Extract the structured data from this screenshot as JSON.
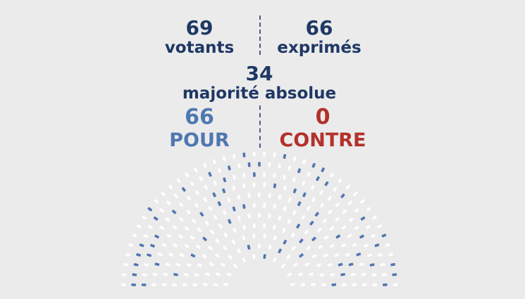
{
  "stats": {
    "votants": {
      "value": "69",
      "label": "votants"
    },
    "exprimes": {
      "value": "66",
      "label": "exprimés"
    },
    "majorite": {
      "value": "34",
      "label": "majorité absolue"
    },
    "pour": {
      "value": "66",
      "label": "POUR"
    },
    "contre": {
      "value": "0",
      "label": "CONTRE"
    }
  },
  "colors": {
    "text_dark": "#1f3864",
    "pour": "#4f77b1",
    "contre": "#b3312b",
    "seat_empty": "#ffffff",
    "seat_pour": "#4f77b1",
    "background": "#ebebeb"
  },
  "hemicycle": {
    "pour_seats": 66,
    "contre_seats": 0
  }
}
